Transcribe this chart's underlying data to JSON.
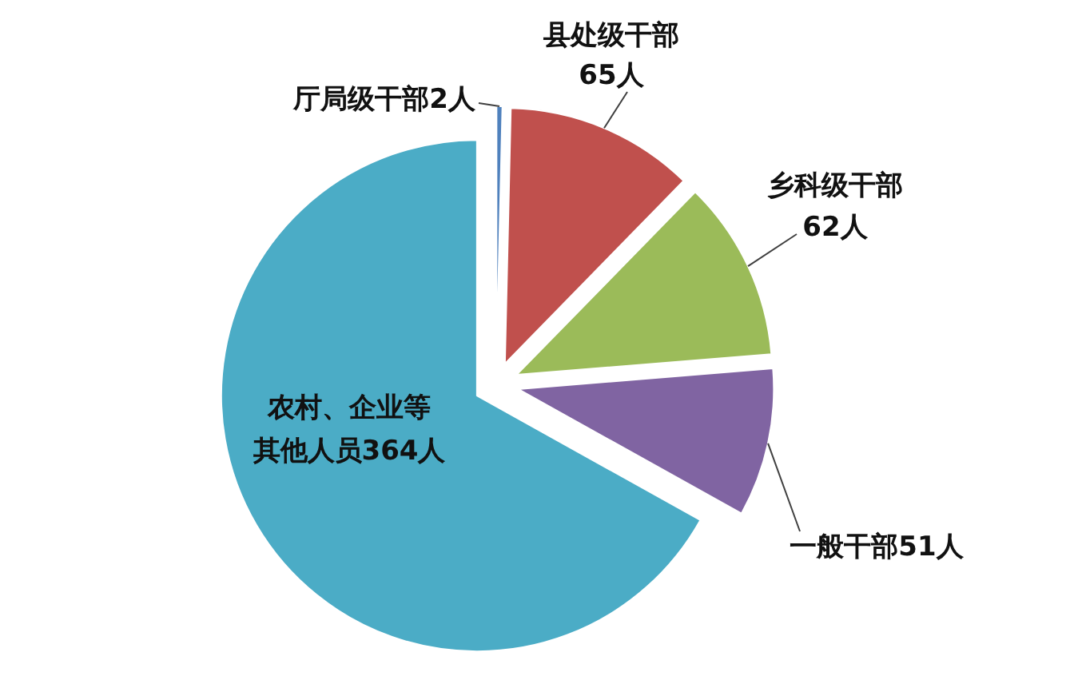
{
  "chart_data": {
    "type": "pie",
    "categories": [
      "厅局级干部",
      "县处级干部",
      "乡科级干部",
      "一般干部",
      "农村、企业等其他人员"
    ],
    "values": [
      2,
      65,
      62,
      51,
      364
    ],
    "value_labels": [
      "2人",
      "65人",
      "62人",
      "51人",
      "364人"
    ],
    "colors": [
      "#4f81bd",
      "#c0504d",
      "#9bbb59",
      "#8064a2",
      "#4bacc6"
    ]
  }
}
